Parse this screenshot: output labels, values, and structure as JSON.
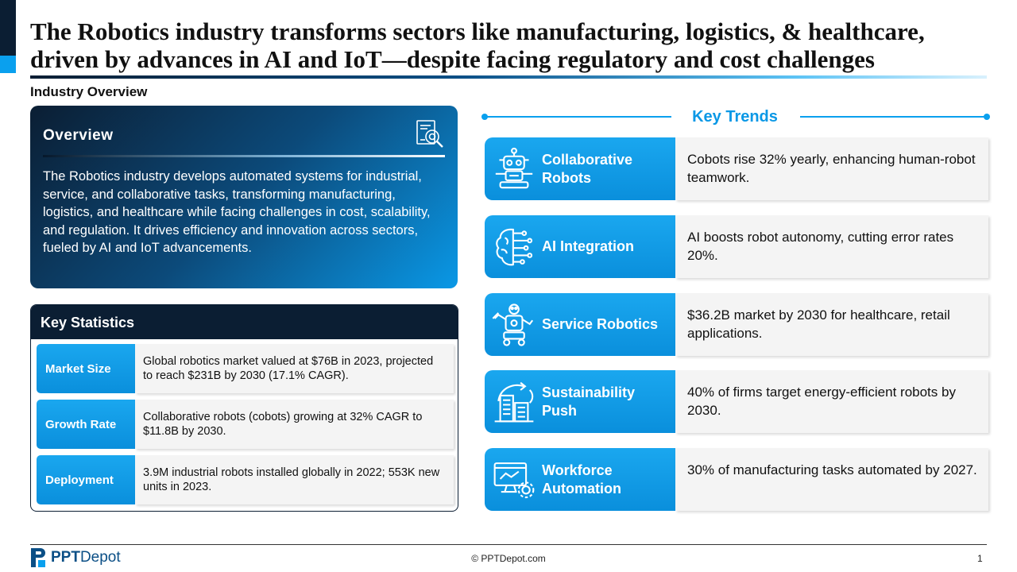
{
  "title": "The Robotics industry transforms sectors like manufacturing, logistics, & healthcare, driven by advances in AI and IoT—despite facing regulatory and cost challenges",
  "section_label": "Industry Overview",
  "overview": {
    "heading": "Overview",
    "icon": "document-magnifier-icon",
    "text": "The Robotics industry develops automated systems for industrial, service, and collaborative tasks, transforming manufacturing, logistics, and healthcare while facing challenges in cost, scalability, and regulation. It drives efficiency and innovation across sectors, fueled by AI and IoT advancements."
  },
  "key_statistics": {
    "heading": "Key Statistics",
    "rows": [
      {
        "label": "Market Size",
        "text": "Global robotics market valued at $76B in 2023, projected to reach $231B by 2030 (17.1% CAGR)."
      },
      {
        "label": "Growth Rate",
        "text": "Collaborative robots (cobots) growing at 32% CAGR to $11.8B by 2030."
      },
      {
        "label": "Deployment",
        "text": "3.9M industrial robots installed globally in 2022; 553K new units in 2023."
      }
    ]
  },
  "key_trends": {
    "heading": "Key Trends",
    "items": [
      {
        "name": "Collaborative Robots",
        "icon": "robot-icon",
        "desc": "Cobots rise 32% yearly, enhancing human-robot teamwork."
      },
      {
        "name": "AI Integration",
        "icon": "brain-circuit-icon",
        "desc": "AI boosts robot autonomy, cutting error rates 20%."
      },
      {
        "name": "Service Robotics",
        "icon": "service-robot-icon",
        "desc": "$36.2B market by 2030 for healthcare, retail applications."
      },
      {
        "name": "Sustainability Push",
        "icon": "green-building-icon",
        "desc": "40% of firms target energy-efficient robots by 2030."
      },
      {
        "name": "Workforce Automation",
        "icon": "monitor-gear-icon",
        "desc": "30% of manufacturing tasks automated by 2027."
      }
    ]
  },
  "footer": {
    "logo_bold": "PPT",
    "logo_rest": "Depot",
    "copyright": "© PPTDepot.com",
    "page_number": "1"
  },
  "colors": {
    "navy": "#0b1e33",
    "accent_blue": "#0aa0ee",
    "panel_gray": "#f4f4f4"
  }
}
